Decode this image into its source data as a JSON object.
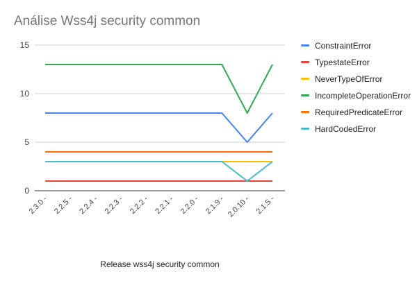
{
  "chart_data": {
    "type": "line",
    "title": "Análise Wss4j security common",
    "xlabel": "Release wss4j security common",
    "ylabel": "",
    "categories": [
      "2.3.0 -",
      "2.2.5 -",
      "2.2.4 -",
      "2.2.3 -",
      "2.2.2 -",
      "2.2.1 -",
      "2.2.0 -",
      "2.1.9 -",
      "2.0.10 -",
      "2.1.5 -"
    ],
    "ylim": [
      0,
      15
    ],
    "yticks": [
      "0",
      "5",
      "10",
      "15"
    ],
    "grid": true,
    "legend_position": "right",
    "series": [
      {
        "name": "ConstraintError",
        "color": "#4285f4",
        "values": [
          8,
          8,
          8,
          8,
          8,
          8,
          8,
          8,
          5,
          8
        ]
      },
      {
        "name": "TypestateError",
        "color": "#ea4335",
        "values": [
          1,
          1,
          1,
          1,
          1,
          1,
          1,
          1,
          1,
          1
        ]
      },
      {
        "name": "NeverTypeOfError",
        "color": "#fbbc04",
        "values": [
          3,
          3,
          3,
          3,
          3,
          3,
          3,
          3,
          3,
          3
        ]
      },
      {
        "name": "IncompleteOperationError",
        "color": "#34a853",
        "values": [
          13,
          13,
          13,
          13,
          13,
          13,
          13,
          13,
          8,
          13
        ]
      },
      {
        "name": "RequiredPredicateError",
        "color": "#ff6d01",
        "values": [
          4,
          4,
          4,
          4,
          4,
          4,
          4,
          4,
          4,
          4
        ]
      },
      {
        "name": "HardCodedError",
        "color": "#46bdc6",
        "values": [
          3,
          3,
          3,
          3,
          3,
          3,
          3,
          3,
          1,
          3
        ]
      }
    ]
  }
}
